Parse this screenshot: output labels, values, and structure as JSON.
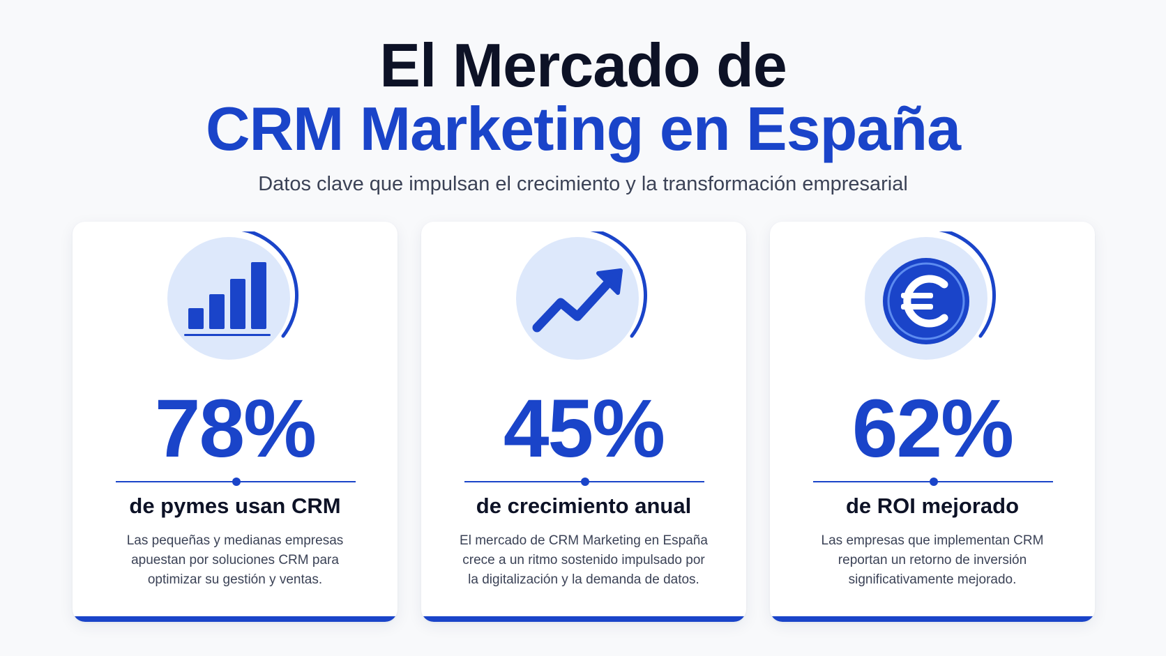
{
  "header": {
    "title_line1": "El Mercado de",
    "title_line2": "CRM Marketing en España",
    "subtitle": "Datos clave que impulsan el crecimiento y la transformación empresarial"
  },
  "colors": {
    "accent": "#1a44c9",
    "dark_text": "#0d1226",
    "body_text": "#3b4256",
    "icon_bg": "#dde8fb"
  },
  "cards": [
    {
      "icon": "bar-chart-icon",
      "value": "78%",
      "label": "de pymes usan CRM",
      "description": "Las pequeñas y medianas empresas apuestan por soluciones CRM para optimizar su gestión y ventas."
    },
    {
      "icon": "trending-up-icon",
      "value": "45%",
      "label": "de crecimiento anual",
      "description": "El mercado de CRM Marketing en España crece a un ritmo sostenido impulsado por la digitalización y la demanda de datos."
    },
    {
      "icon": "euro-coin-icon",
      "value": "62%",
      "label": "de ROI mejorado",
      "description": "Las empresas que implementan CRM reportan un retorno de inversión significativamente mejorado."
    }
  ]
}
